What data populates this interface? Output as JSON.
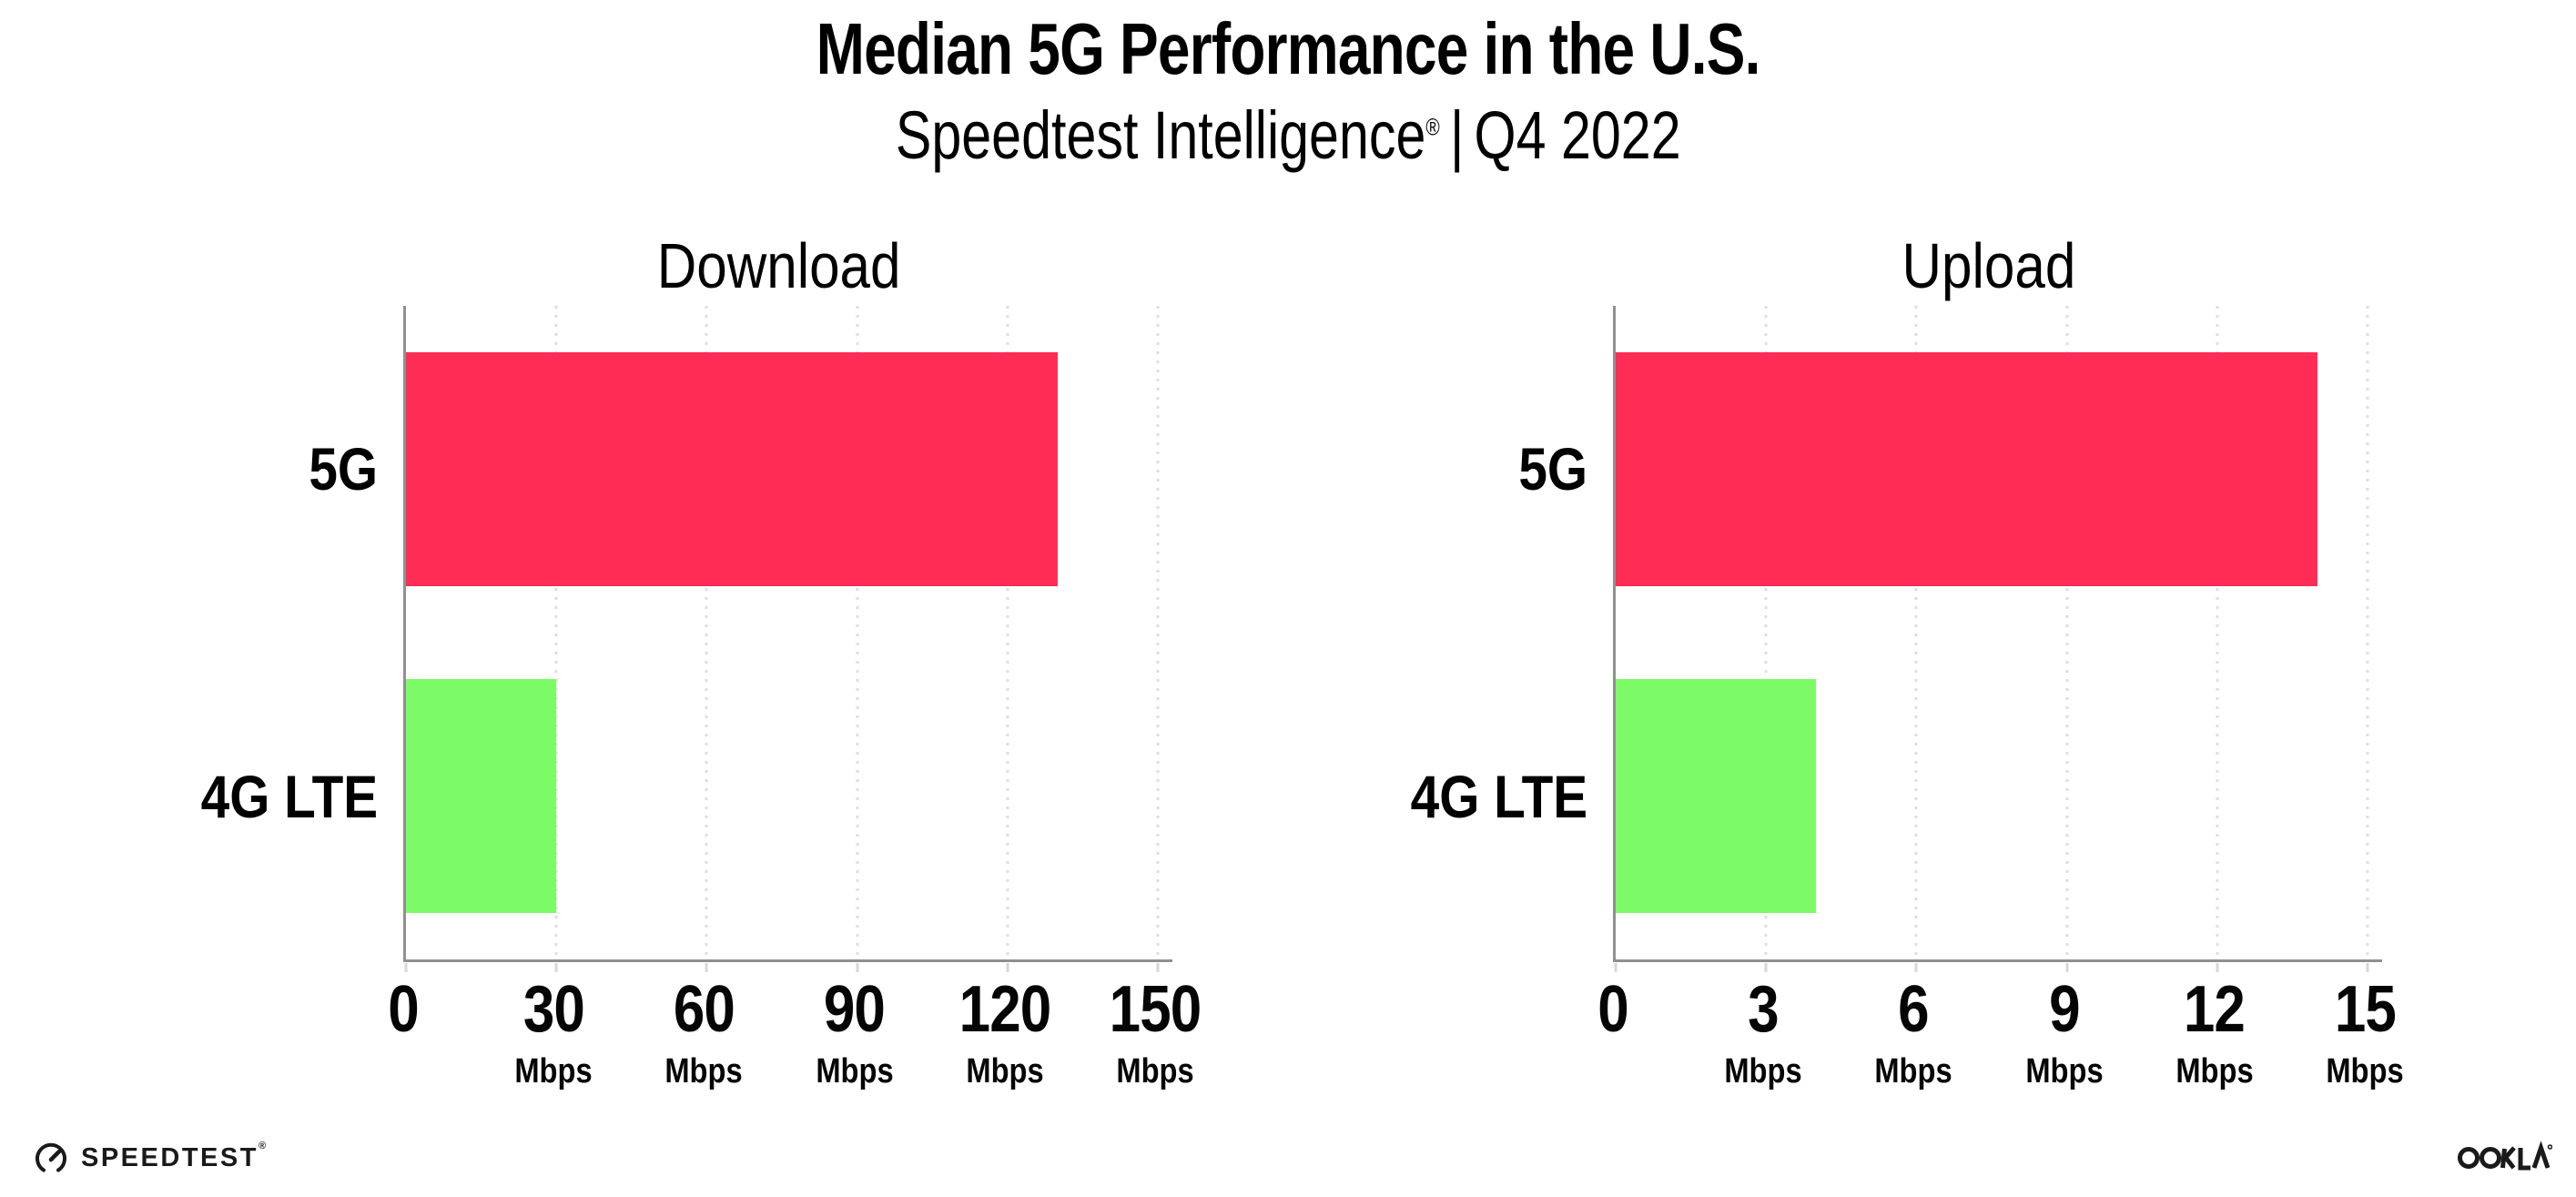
{
  "header": {
    "title": "Median 5G Performance in the U.S.",
    "subtitle_brand": "Speedtest Intelligence",
    "subtitle_reg": "®",
    "subtitle_separator": "|",
    "subtitle_period": "Q4 2022"
  },
  "colors": {
    "bar_5g": "#ff2d55",
    "bar_4g_lte": "#7dfb66",
    "axis": "#909090",
    "gridline": "#dcdee8",
    "text": "#000000"
  },
  "chart_data": [
    {
      "type": "bar",
      "orientation": "horizontal",
      "title": "Download",
      "categories": [
        "5G",
        "4G LTE"
      ],
      "values": [
        130,
        30
      ],
      "unit": "Mbps",
      "xlabel": "",
      "xlim": [
        0,
        150
      ],
      "xticks": [
        0,
        30,
        60,
        90,
        120,
        150
      ],
      "grid": "vertical-dotted",
      "legend": "none",
      "bar_colors": [
        "#ff2d55",
        "#7dfb66"
      ]
    },
    {
      "type": "bar",
      "orientation": "horizontal",
      "title": "Upload",
      "categories": [
        "5G",
        "4G LTE"
      ],
      "values": [
        14,
        4
      ],
      "unit": "Mbps",
      "xlabel": "",
      "xlim": [
        0,
        15
      ],
      "xticks": [
        0,
        3,
        6,
        9,
        12,
        15
      ],
      "grid": "vertical-dotted",
      "legend": "none",
      "bar_colors": [
        "#ff2d55",
        "#7dfb66"
      ]
    }
  ],
  "footer": {
    "speedtest_label": "SPEEDTEST",
    "speedtest_reg": "®",
    "ookla_label": "OOKLA"
  }
}
